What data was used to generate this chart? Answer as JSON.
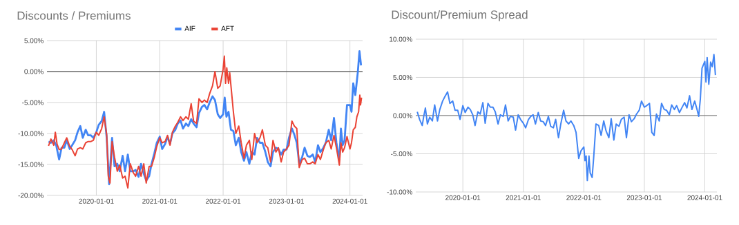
{
  "chart_data": [
    {
      "type": "line",
      "title": "Discounts / Premiums",
      "legend": "top",
      "grid": true,
      "xlim": [
        "2019-03-23",
        "2024-03-14"
      ],
      "xticks": [
        "2020-01-01",
        "2021-01-01",
        "2022-01-01",
        "2023-01-01",
        "2024-01-01"
      ],
      "ylim": [
        -20,
        5
      ],
      "yticks": [
        {
          "value": -20,
          "label": "-20.00%"
        },
        {
          "value": -15,
          "label": "-15.00%"
        },
        {
          "value": -10,
          "label": "-10.00%"
        },
        {
          "value": -5,
          "label": "-5.00%"
        },
        {
          "value": 0,
          "label": "0.00%"
        },
        {
          "value": 5,
          "label": "5.00%"
        }
      ],
      "ref_lines": [
        {
          "axis": "y",
          "value": 0,
          "color": "#333333"
        }
      ],
      "series": [
        {
          "name": "AIF",
          "color": "#4285f4",
          "x": [
            "2019-04-01",
            "2019-04-15",
            "2019-05-01",
            "2019-05-15",
            "2019-06-01",
            "2019-06-15",
            "2019-07-01",
            "2019-07-15",
            "2019-08-01",
            "2019-08-15",
            "2019-09-01",
            "2019-09-15",
            "2019-10-01",
            "2019-10-15",
            "2019-11-01",
            "2019-11-15",
            "2019-12-01",
            "2019-12-15",
            "2020-01-01",
            "2020-01-15",
            "2020-02-01",
            "2020-02-15",
            "2020-03-01",
            "2020-03-15",
            "2020-04-01",
            "2020-04-15",
            "2020-05-01",
            "2020-05-15",
            "2020-06-01",
            "2020-06-15",
            "2020-07-01",
            "2020-07-15",
            "2020-08-01",
            "2020-08-15",
            "2020-09-01",
            "2020-09-15",
            "2020-10-01",
            "2020-10-15",
            "2020-11-01",
            "2020-11-15",
            "2020-12-01",
            "2020-12-15",
            "2021-01-01",
            "2021-01-15",
            "2021-02-01",
            "2021-02-15",
            "2021-03-01",
            "2021-03-15",
            "2021-04-01",
            "2021-04-15",
            "2021-05-01",
            "2021-05-15",
            "2021-06-01",
            "2021-06-15",
            "2021-07-01",
            "2021-07-15",
            "2021-08-01",
            "2021-08-15",
            "2021-09-01",
            "2021-09-15",
            "2021-10-01",
            "2021-10-15",
            "2021-11-01",
            "2021-11-15",
            "2021-12-01",
            "2021-12-15",
            "2022-01-01",
            "2022-01-10",
            "2022-01-20",
            "2022-02-01",
            "2022-02-15",
            "2022-03-01",
            "2022-03-15",
            "2022-04-01",
            "2022-04-15",
            "2022-05-01",
            "2022-05-15",
            "2022-06-01",
            "2022-06-15",
            "2022-07-01",
            "2022-07-15",
            "2022-08-01",
            "2022-08-15",
            "2022-09-01",
            "2022-09-15",
            "2022-10-01",
            "2022-10-15",
            "2022-11-01",
            "2022-11-15",
            "2022-12-01",
            "2022-12-15",
            "2023-01-01",
            "2023-01-15",
            "2023-02-01",
            "2023-02-15",
            "2023-03-01",
            "2023-03-15",
            "2023-04-01",
            "2023-04-15",
            "2023-05-01",
            "2023-05-15",
            "2023-06-01",
            "2023-06-15",
            "2023-07-01",
            "2023-07-15",
            "2023-08-01",
            "2023-08-15",
            "2023-09-01",
            "2023-09-15",
            "2023-10-01",
            "2023-10-15",
            "2023-11-01",
            "2023-11-10",
            "2023-11-20",
            "2023-12-01",
            "2023-12-15",
            "2024-01-01",
            "2024-01-10",
            "2024-01-20",
            "2024-02-01",
            "2024-02-15",
            "2024-02-25",
            "2024-03-05"
          ],
          "values": [
            -11.3,
            -11.5,
            -11.1,
            -11.9,
            -14.2,
            -12.3,
            -12.3,
            -11.1,
            -12.5,
            -11.9,
            -11.1,
            -9.8,
            -8.8,
            -10.7,
            -9.4,
            -10.3,
            -10.3,
            -10.7,
            -9.8,
            -8.6,
            -8.0,
            -6.5,
            -10.7,
            -18.2,
            -10.7,
            -15.3,
            -14.9,
            -16.1,
            -13.6,
            -16.1,
            -13.4,
            -16.1,
            -16.1,
            -15.9,
            -17.0,
            -14.9,
            -16.5,
            -17.6,
            -16.9,
            -14.9,
            -13.2,
            -11.5,
            -10.5,
            -12.5,
            -11.7,
            -10.5,
            -11.7,
            -10.0,
            -9.4,
            -8.4,
            -7.9,
            -9.2,
            -8.4,
            -8.8,
            -7.7,
            -8.4,
            -9.0,
            -6.7,
            -5.7,
            -5.4,
            -6.1,
            -5.0,
            -4.0,
            -4.6,
            -6.9,
            -7.5,
            -6.9,
            -4.2,
            -7.3,
            -6.5,
            -9.4,
            -9.6,
            -11.9,
            -10.7,
            -13.0,
            -14.4,
            -13.0,
            -14.9,
            -13.0,
            -13.4,
            -10.7,
            -11.5,
            -11.5,
            -13.0,
            -14.6,
            -15.3,
            -13.0,
            -12.3,
            -12.5,
            -13.4,
            -12.6,
            -12.6,
            -10.7,
            -9.2,
            -10.2,
            -11.5,
            -14.9,
            -13.8,
            -12.3,
            -13.6,
            -13.8,
            -13.4,
            -14.6,
            -11.9,
            -13.0,
            -12.3,
            -11.5,
            -9.4,
            -11.1,
            -7.5,
            -11.5,
            -14.2,
            -9.2,
            -11.9,
            -11.1,
            -5.4,
            -5.4,
            -6.5,
            -1.9,
            -3.8,
            -0.2,
            3.3,
            1.0
          ]
        },
        {
          "name": "AFT",
          "color": "#ea4335",
          "x": [
            "2019-04-01",
            "2019-04-15",
            "2019-05-01",
            "2019-05-10",
            "2019-05-20",
            "2019-06-01",
            "2019-06-15",
            "2019-07-01",
            "2019-07-15",
            "2019-08-01",
            "2019-08-15",
            "2019-09-01",
            "2019-09-15",
            "2019-10-01",
            "2019-10-15",
            "2019-11-01",
            "2019-11-15",
            "2019-12-01",
            "2019-12-15",
            "2020-01-01",
            "2020-01-15",
            "2020-02-01",
            "2020-02-15",
            "2020-03-01",
            "2020-03-10",
            "2020-03-20",
            "2020-04-01",
            "2020-04-15",
            "2020-05-01",
            "2020-05-15",
            "2020-06-01",
            "2020-06-15",
            "2020-07-01",
            "2020-07-15",
            "2020-08-01",
            "2020-08-15",
            "2020-09-01",
            "2020-09-15",
            "2020-10-01",
            "2020-10-15",
            "2020-11-01",
            "2020-11-15",
            "2020-12-01",
            "2020-12-15",
            "2021-01-01",
            "2021-01-15",
            "2021-02-01",
            "2021-02-15",
            "2021-03-01",
            "2021-03-15",
            "2021-04-01",
            "2021-04-15",
            "2021-05-01",
            "2021-05-15",
            "2021-06-01",
            "2021-06-15",
            "2021-07-01",
            "2021-07-15",
            "2021-08-01",
            "2021-08-15",
            "2021-09-01",
            "2021-09-15",
            "2021-10-01",
            "2021-10-15",
            "2021-11-01",
            "2021-11-15",
            "2021-12-01",
            "2021-12-15",
            "2022-01-01",
            "2022-01-08",
            "2022-01-15",
            "2022-01-22",
            "2022-02-01",
            "2022-02-08",
            "2022-02-20",
            "2022-03-01",
            "2022-03-15",
            "2022-04-01",
            "2022-04-15",
            "2022-05-01",
            "2022-05-15",
            "2022-06-01",
            "2022-06-15",
            "2022-07-01",
            "2022-07-15",
            "2022-08-01",
            "2022-08-15",
            "2022-09-01",
            "2022-09-15",
            "2022-10-01",
            "2022-10-15",
            "2022-11-01",
            "2022-11-15",
            "2022-12-01",
            "2022-12-15",
            "2023-01-01",
            "2023-01-15",
            "2023-02-01",
            "2023-02-15",
            "2023-03-01",
            "2023-03-15",
            "2023-04-01",
            "2023-04-15",
            "2023-05-01",
            "2023-05-15",
            "2023-06-01",
            "2023-06-15",
            "2023-07-01",
            "2023-07-15",
            "2023-08-01",
            "2023-08-15",
            "2023-09-01",
            "2023-09-15",
            "2023-10-01",
            "2023-10-15",
            "2023-11-01",
            "2023-11-10",
            "2023-11-20",
            "2023-12-01",
            "2023-12-15",
            "2024-01-01",
            "2024-01-10",
            "2024-01-20",
            "2024-02-01",
            "2024-02-10",
            "2024-02-20",
            "2024-02-27",
            "2024-03-02",
            "2024-03-08"
          ],
          "values": [
            -12.0,
            -10.9,
            -11.9,
            -9.8,
            -11.7,
            -12.6,
            -12.5,
            -11.5,
            -10.7,
            -12.1,
            -12.6,
            -13.6,
            -12.5,
            -12.3,
            -12.5,
            -11.5,
            -11.3,
            -11.3,
            -11.1,
            -9.8,
            -10.3,
            -9.2,
            -7.3,
            -10.2,
            -16.9,
            -18.0,
            -11.3,
            -13.8,
            -16.1,
            -15.1,
            -17.2,
            -16.9,
            -18.8,
            -14.9,
            -16.3,
            -16.9,
            -15.3,
            -16.9,
            -14.9,
            -18.0,
            -15.3,
            -15.3,
            -13.8,
            -12.1,
            -10.7,
            -11.5,
            -11.3,
            -10.3,
            -11.9,
            -9.8,
            -8.8,
            -8.2,
            -7.3,
            -7.9,
            -7.3,
            -7.7,
            -5.2,
            -8.0,
            -8.4,
            -4.4,
            -5.0,
            -4.6,
            -5.0,
            -3.6,
            -2.3,
            0.0,
            -2.7,
            -2.3,
            0.4,
            2.5,
            -1.9,
            0.6,
            -1.9,
            -0.2,
            -3.8,
            -6.5,
            -10.0,
            -8.8,
            -11.5,
            -14.0,
            -11.9,
            -11.1,
            -14.2,
            -10.0,
            -11.5,
            -10.7,
            -9.4,
            -11.9,
            -12.3,
            -14.6,
            -11.1,
            -13.0,
            -12.3,
            -14.6,
            -13.0,
            -12.5,
            -11.9,
            -8.0,
            -8.8,
            -9.2,
            -15.5,
            -14.2,
            -14.0,
            -14.9,
            -14.9,
            -14.6,
            -14.9,
            -13.4,
            -14.2,
            -12.6,
            -11.5,
            -11.1,
            -12.5,
            -10.3,
            -12.3,
            -15.1,
            -11.5,
            -13.0,
            -12.3,
            -10.5,
            -12.5,
            -11.5,
            -9.4,
            -9.0,
            -7.3,
            -6.5,
            -3.8,
            -5.4,
            -4.2
          ]
        }
      ]
    },
    {
      "type": "line",
      "title": "Discount/Premium Spread",
      "grid": true,
      "xlim": [
        "2019-03-23",
        "2024-03-14"
      ],
      "xticks": [
        "2020-01-01",
        "2021-01-01",
        "2022-01-01",
        "2023-01-01",
        "2024-01-01"
      ],
      "ylim": [
        -10,
        10
      ],
      "yticks": [
        {
          "value": -10,
          "label": "-10.00%"
        },
        {
          "value": -5,
          "label": "-5.00%"
        },
        {
          "value": 0,
          "label": "0.00%"
        },
        {
          "value": 5,
          "label": "5.00%"
        },
        {
          "value": 10,
          "label": "10.00%"
        }
      ],
      "ref_lines": [
        {
          "axis": "y",
          "value": 0,
          "color": "#333333"
        }
      ],
      "series": [
        {
          "color": "#4285f4",
          "x": [
            "2019-04-01",
            "2019-04-15",
            "2019-05-01",
            "2019-05-10",
            "2019-05-20",
            "2019-06-01",
            "2019-06-15",
            "2019-07-01",
            "2019-07-15",
            "2019-08-01",
            "2019-08-15",
            "2019-09-01",
            "2019-09-15",
            "2019-10-01",
            "2019-10-15",
            "2019-11-01",
            "2019-11-15",
            "2019-12-01",
            "2019-12-15",
            "2020-01-01",
            "2020-01-15",
            "2020-02-01",
            "2020-02-15",
            "2020-03-01",
            "2020-03-15",
            "2020-04-01",
            "2020-04-15",
            "2020-05-01",
            "2020-05-15",
            "2020-06-01",
            "2020-06-15",
            "2020-07-01",
            "2020-07-15",
            "2020-08-01",
            "2020-08-15",
            "2020-09-01",
            "2020-09-15",
            "2020-10-01",
            "2020-10-15",
            "2020-11-01",
            "2020-11-15",
            "2020-12-01",
            "2020-12-15",
            "2021-01-01",
            "2021-01-15",
            "2021-02-01",
            "2021-02-15",
            "2021-03-01",
            "2021-03-15",
            "2021-04-01",
            "2021-04-15",
            "2021-05-01",
            "2021-05-15",
            "2021-06-01",
            "2021-06-15",
            "2021-07-01",
            "2021-07-15",
            "2021-08-01",
            "2021-08-15",
            "2021-09-01",
            "2021-09-15",
            "2021-10-01",
            "2021-10-15",
            "2021-11-01",
            "2021-11-15",
            "2021-12-01",
            "2021-12-15",
            "2022-01-01",
            "2022-01-08",
            "2022-01-15",
            "2022-01-22",
            "2022-02-01",
            "2022-02-08",
            "2022-02-20",
            "2022-03-01",
            "2022-03-15",
            "2022-04-01",
            "2022-04-15",
            "2022-05-01",
            "2022-05-15",
            "2022-06-01",
            "2022-06-15",
            "2022-07-01",
            "2022-07-15",
            "2022-08-01",
            "2022-08-15",
            "2022-09-01",
            "2022-09-15",
            "2022-10-01",
            "2022-10-15",
            "2022-11-01",
            "2022-11-15",
            "2022-12-01",
            "2022-12-15",
            "2023-01-01",
            "2023-01-15",
            "2023-02-01",
            "2023-02-15",
            "2023-03-01",
            "2023-03-15",
            "2023-04-01",
            "2023-04-15",
            "2023-05-01",
            "2023-05-15",
            "2023-06-01",
            "2023-06-15",
            "2023-07-01",
            "2023-07-15",
            "2023-08-01",
            "2023-08-15",
            "2023-09-01",
            "2023-09-15",
            "2023-10-01",
            "2023-10-15",
            "2023-11-01",
            "2023-11-15",
            "2023-11-25",
            "2023-12-05",
            "2023-12-15",
            "2024-01-01",
            "2024-01-08",
            "2024-01-15",
            "2024-01-25",
            "2024-02-05",
            "2024-02-15",
            "2024-02-25",
            "2024-03-05"
          ],
          "values": [
            0.5,
            -0.5,
            -1.3,
            -0.1,
            1.0,
            -1.1,
            -0.2,
            -0.7,
            1.4,
            -0.7,
            0.8,
            1.9,
            2.5,
            3.1,
            1.6,
            1.9,
            0.7,
            0.7,
            -0.5,
            1.3,
            0.4,
            1.1,
            0.8,
            0.1,
            -1.3,
            0.5,
            0.2,
            1.7,
            -1.0,
            1.6,
            1.1,
            1.1,
            0.5,
            -1.1,
            0.1,
            -0.1,
            1.4,
            -0.7,
            -0.1,
            -0.2,
            -1.9,
            0.1,
            -0.5,
            -1.0,
            -1.6,
            -0.5,
            -0.1,
            0.1,
            -1.1,
            0.4,
            -0.7,
            -0.8,
            -1.3,
            -0.1,
            -1.4,
            -1.6,
            -0.5,
            -2.9,
            -1.1,
            0.7,
            -0.7,
            -1.1,
            -0.7,
            -1.3,
            -2.2,
            -5.6,
            -4.6,
            -4.1,
            -5.9,
            -5.3,
            -8.5,
            -5.3,
            -7.5,
            -8.1,
            -5.6,
            -1.1,
            -1.3,
            -2.6,
            -0.7,
            -2.0,
            -2.9,
            -0.4,
            -3.2,
            -1.1,
            -1.4,
            -0.5,
            -0.2,
            -2.9,
            0.1,
            -0.8,
            -0.4,
            0.2,
            0.7,
            1.9,
            1.1,
            1.3,
            1.6,
            -2.2,
            -2.6,
            0.2,
            -0.7,
            1.6,
            0.8,
            0.7,
            0.1,
            1.4,
            0.8,
            1.3,
            0.4,
            1.0,
            1.7,
            1.0,
            2.6,
            0.8,
            1.9,
            0.8,
            -0.1,
            2.2,
            6.2,
            7.1,
            4.4,
            7.6,
            4.1,
            7.0,
            6.4,
            8.0,
            5.3
          ]
        }
      ]
    }
  ]
}
